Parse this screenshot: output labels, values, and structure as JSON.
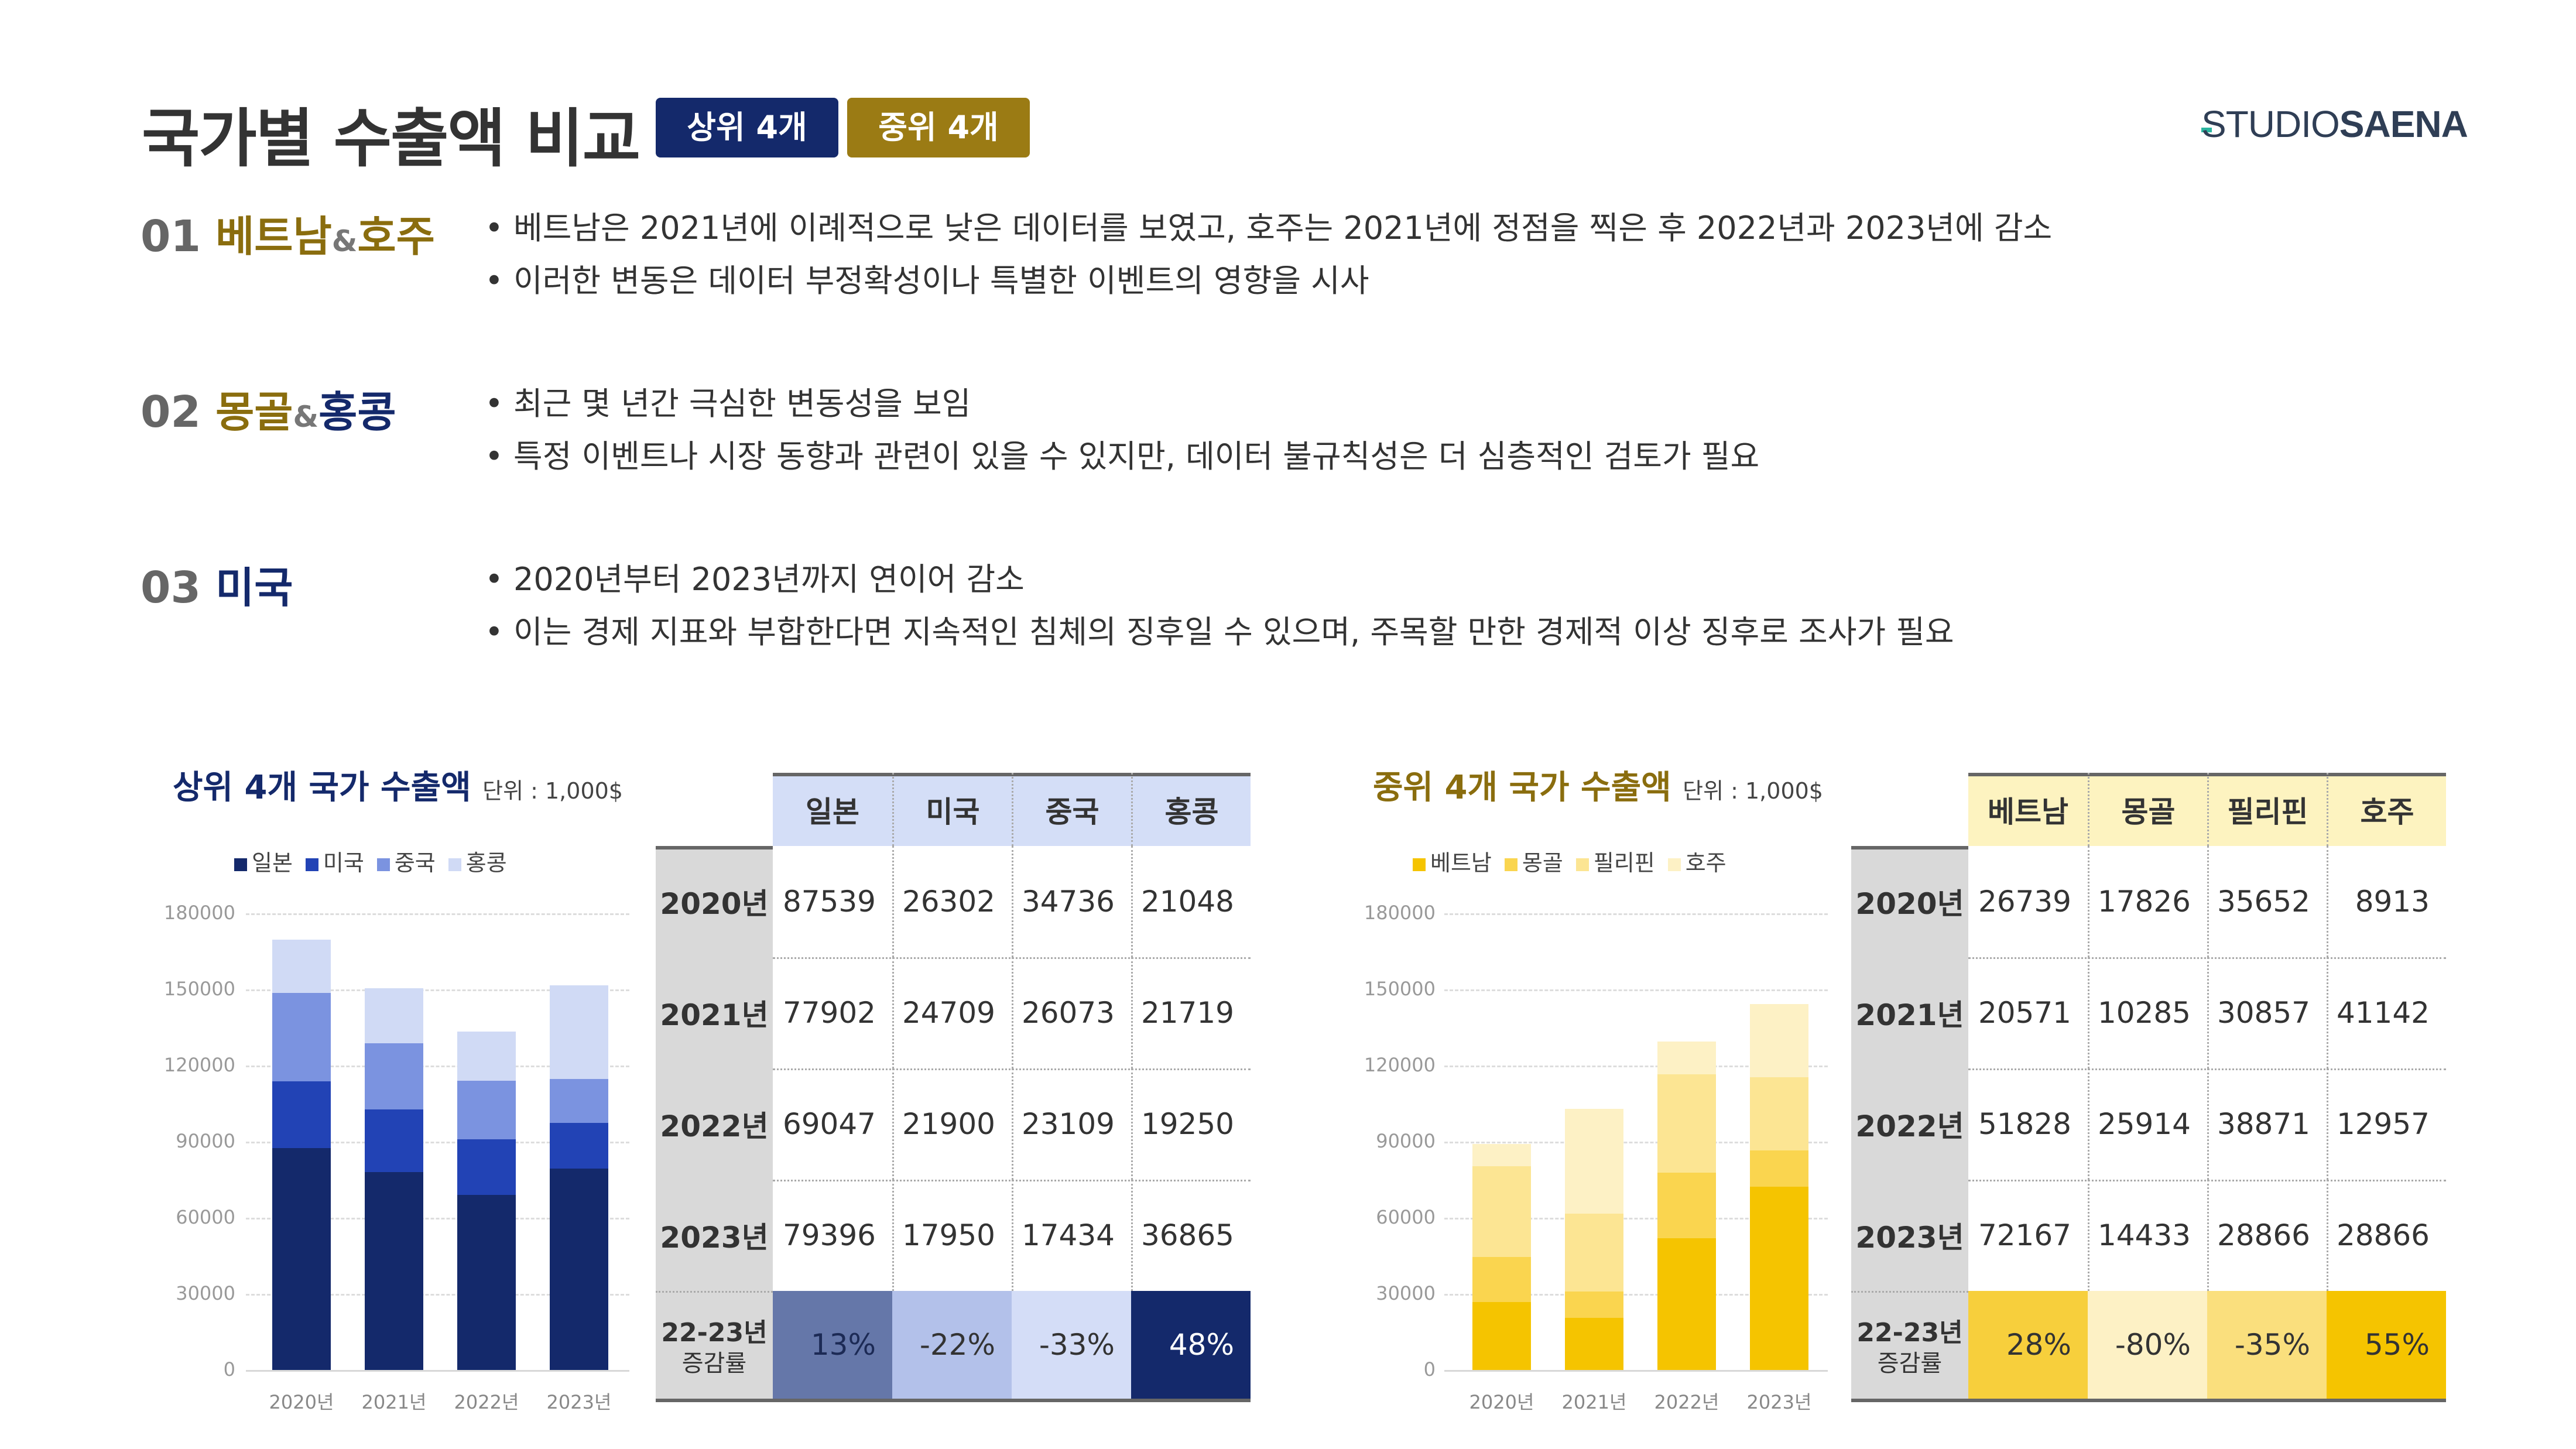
{
  "header": {
    "title": "국가별 수출액 비교",
    "badge_top": "상위 4개",
    "badge_mid": "중위 4개",
    "logo_light": "STUDIO",
    "logo_bold": "SAENA"
  },
  "sections": [
    {
      "num": "01",
      "name_a": "베트남",
      "amp": "&",
      "name_b": "호주",
      "bullets": [
        "• 베트남은 2021년에 이례적으로 낮은 데이터를 보였고, 호주는 2021년에 정점을 찍은 후 2022년과 2023년에 감소",
        "• 이러한 변동은 데이터 부정확성이나 특별한 이벤트의 영향을 시사"
      ]
    },
    {
      "num": "02",
      "name_a": "몽골",
      "amp": "&",
      "name_b": "홍콩",
      "bullets": [
        "• 최근 몇 년간 극심한 변동성을 보임",
        "• 특정 이벤트나 시장 동향과 관련이 있을 수 있지만, 데이터 불규칙성은 더 심층적인 검토가 필요"
      ]
    },
    {
      "num": "03",
      "name_a": "미국",
      "amp": "",
      "name_b": "",
      "bullets": [
        "• 2020년부터 2023년까지 연이어 감소",
        "• 이는 경제 지표와 부합한다면 지속적인 침체의 징후일 수 있으며, 주목할 만한 경제적 이상 징후로 조사가 필요"
      ]
    }
  ],
  "chart_data": [
    {
      "type": "bar",
      "stacked": true,
      "title": "상위 4개 국가 수출액",
      "unit": "단위 : 1,000$",
      "categories": [
        "2020년",
        "2021년",
        "2022년",
        "2023년"
      ],
      "ylim": [
        0,
        180000
      ],
      "yticks": [
        "0",
        "30000",
        "60000",
        "90000",
        "120000",
        "150000",
        "180000"
      ],
      "legend_position": "top-left",
      "grid": true,
      "series": [
        {
          "name": "일본",
          "color": "#14296b",
          "values": [
            87539,
            77902,
            69047,
            79396
          ]
        },
        {
          "name": "미국",
          "color": "#2243b5",
          "values": [
            26302,
            24709,
            21900,
            17950
          ]
        },
        {
          "name": "중국",
          "color": "#7b93e0",
          "values": [
            34736,
            26073,
            23109,
            17434
          ]
        },
        {
          "name": "홍콩",
          "color": "#d0daf5",
          "values": [
            21048,
            21719,
            19250,
            36865
          ]
        }
      ]
    },
    {
      "type": "bar",
      "stacked": true,
      "title": "중위 4개 국가 수출액",
      "unit": "단위 : 1,000$",
      "categories": [
        "2020년",
        "2021년",
        "2022년",
        "2023년"
      ],
      "ylim": [
        0,
        180000
      ],
      "yticks": [
        "0",
        "30000",
        "60000",
        "90000",
        "120000",
        "150000",
        "180000"
      ],
      "legend_position": "top-left",
      "grid": true,
      "series": [
        {
          "name": "베트남",
          "color": "#f5c400",
          "values": [
            26739,
            20571,
            51828,
            72167
          ]
        },
        {
          "name": "몽골",
          "color": "#fad54f",
          "values": [
            17826,
            10285,
            25914,
            14433
          ]
        },
        {
          "name": "필리핀",
          "color": "#fce593",
          "values": [
            35652,
            30857,
            38871,
            28866
          ]
        },
        {
          "name": "호주",
          "color": "#fdf1c5",
          "values": [
            8913,
            41142,
            12957,
            28866
          ]
        }
      ]
    }
  ],
  "tables": [
    {
      "columns": [
        "일본",
        "미국",
        "중국",
        "홍콩"
      ],
      "rows": [
        {
          "label": "2020년",
          "values": [
            "87539",
            "26302",
            "34736",
            "21048"
          ]
        },
        {
          "label": "2021년",
          "values": [
            "77902",
            "24709",
            "26073",
            "21719"
          ]
        },
        {
          "label": "2022년",
          "values": [
            "69047",
            "21900",
            "23109",
            "19250"
          ]
        },
        {
          "label": "2023년",
          "values": [
            "79396",
            "17950",
            "17434",
            "36865"
          ]
        }
      ],
      "change_label_1": "22-23년",
      "change_label_2": "증감률",
      "change": [
        "13%",
        "-22%",
        "-33%",
        "48%"
      ],
      "header_bg": "#d4def7",
      "change_bg": [
        "#6577a9",
        "#b3c1ea",
        "#d4ddf7",
        "#14296b"
      ],
      "change_fg": [
        "#1c2a55",
        "#333333",
        "#333333",
        "#ffffff"
      ]
    },
    {
      "columns": [
        "베트남",
        "몽골",
        "필리핀",
        "호주"
      ],
      "rows": [
        {
          "label": "2020년",
          "values": [
            "26739",
            "17826",
            "35652",
            "8913"
          ]
        },
        {
          "label": "2021년",
          "values": [
            "20571",
            "10285",
            "30857",
            "41142"
          ]
        },
        {
          "label": "2022년",
          "values": [
            "51828",
            "25914",
            "38871",
            "12957"
          ]
        },
        {
          "label": "2023년",
          "values": [
            "72167",
            "14433",
            "28866",
            "28866"
          ]
        }
      ],
      "change_label_1": "22-23년",
      "change_label_2": "증감률",
      "change": [
        "28%",
        "-80%",
        "-35%",
        "55%"
      ],
      "header_bg": "#fdf3c0",
      "change_bg": [
        "#f7cf3c",
        "#fdf1c5",
        "#fadf7d",
        "#f5c400"
      ],
      "change_fg": [
        "#333333",
        "#333333",
        "#333333",
        "#333333"
      ]
    }
  ]
}
